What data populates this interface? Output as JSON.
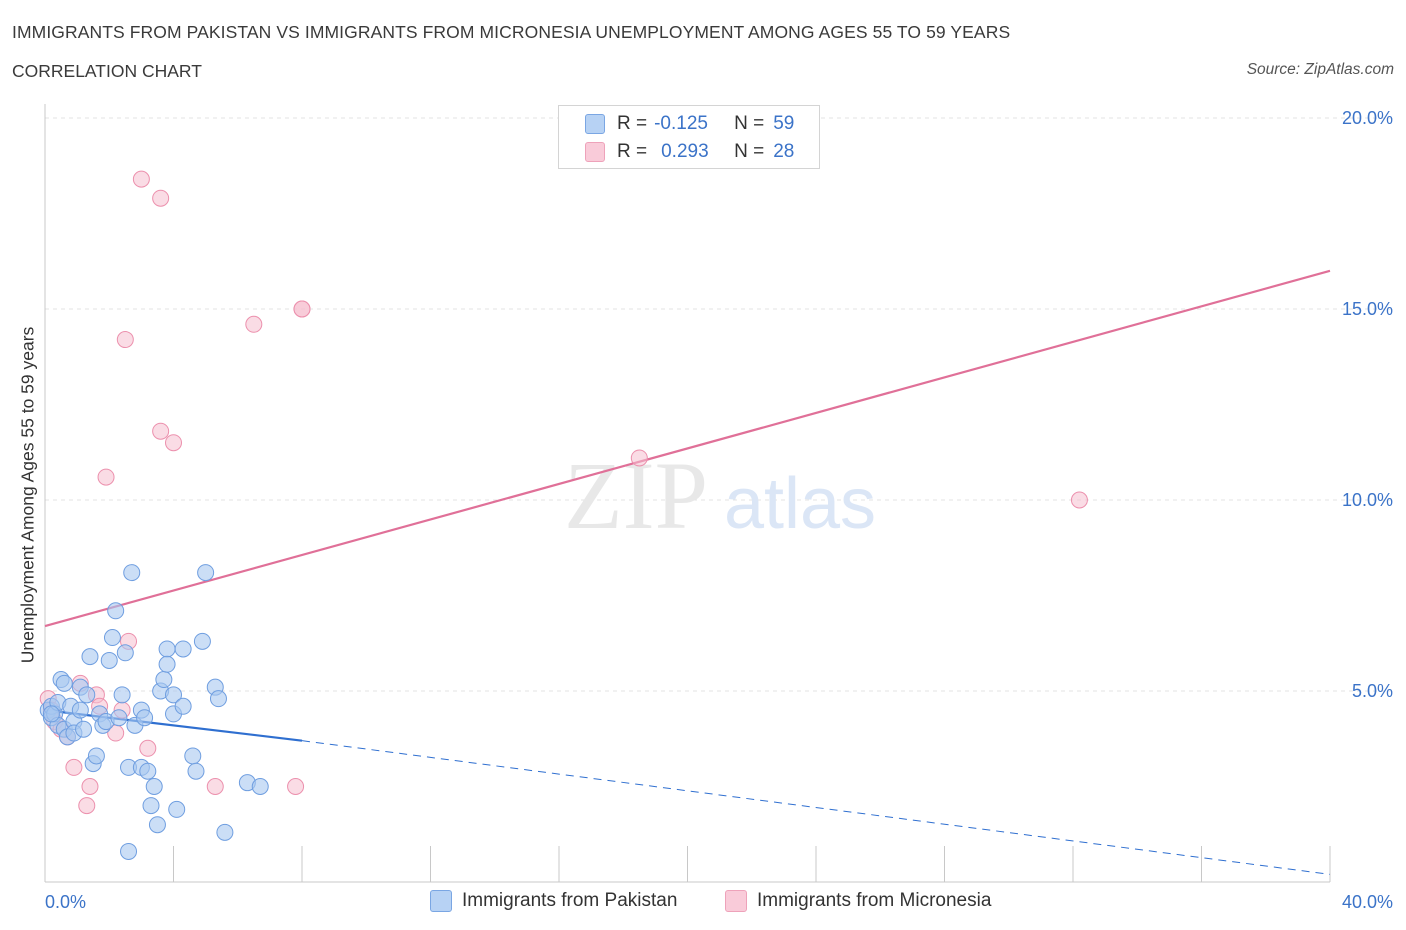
{
  "header": {
    "title": "IMMIGRANTS FROM PAKISTAN VS IMMIGRANTS FROM MICRONESIA UNEMPLOYMENT AMONG AGES 55 TO 59 YEARS",
    "subtitle": "CORRELATION CHART",
    "source": "Source: ZipAtlas.com"
  },
  "legend": {
    "rows": [
      {
        "r_label": "R =",
        "r_value": "-0.125",
        "n_label": "N =",
        "n_value": "59"
      },
      {
        "r_label": "R =",
        "r_value": "0.293",
        "n_label": "N =",
        "n_value": "28"
      }
    ]
  },
  "bottom_legend": {
    "pakistan": "Immigrants from Pakistan",
    "micronesia": "Immigrants from Micronesia"
  },
  "watermark": {
    "zip": "ZIP",
    "atlas": "atlas"
  },
  "colors": {
    "pakistan_fill": "#a9c8f0",
    "pakistan_stroke": "#6f9ee0",
    "pakistan_line": "#2f6fd0",
    "micronesia_fill": "#f6bfd0",
    "micronesia_stroke": "#ec90ad",
    "micronesia_line": "#e07098",
    "tick_label": "#3b73c8",
    "grid": "#e3e3e3"
  },
  "chart_data": {
    "type": "scatter",
    "title": "IMMIGRANTS FROM PAKISTAN VS IMMIGRANTS FROM MICRONESIA UNEMPLOYMENT AMONG AGES 55 TO 59 YEARS",
    "xlabel": "",
    "ylabel": "Unemployment Among Ages 55 to 59 years",
    "xlim": [
      0,
      40
    ],
    "ylim": [
      0,
      20
    ],
    "x_tick_labels": [
      "0.0%",
      "40.0%"
    ],
    "y_ticks": [
      5,
      10,
      15,
      20
    ],
    "y_tick_labels": [
      "5.0%",
      "10.0%",
      "15.0%",
      "20.0%"
    ],
    "grid": true,
    "legend_position": "top-center",
    "series": [
      {
        "name": "Immigrants from Pakistan",
        "R": -0.125,
        "N": 59,
        "trend": {
          "x": [
            0,
            8
          ],
          "y": [
            4.5,
            3.7
          ],
          "dashed_extension_to": [
            40,
            0.2
          ]
        },
        "points": [
          [
            0.1,
            4.5
          ],
          [
            0.2,
            4.3
          ],
          [
            0.2,
            4.6
          ],
          [
            0.3,
            4.4
          ],
          [
            0.4,
            4.7
          ],
          [
            0.4,
            4.1
          ],
          [
            0.5,
            5.3
          ],
          [
            0.6,
            4.0
          ],
          [
            0.6,
            5.2
          ],
          [
            0.7,
            3.8
          ],
          [
            0.8,
            4.6
          ],
          [
            0.9,
            4.2
          ],
          [
            0.9,
            3.9
          ],
          [
            1.1,
            5.1
          ],
          [
            1.1,
            4.5
          ],
          [
            1.2,
            4.0
          ],
          [
            1.3,
            4.9
          ],
          [
            1.4,
            5.9
          ],
          [
            1.5,
            3.1
          ],
          [
            1.6,
            3.3
          ],
          [
            1.7,
            4.4
          ],
          [
            1.8,
            4.1
          ],
          [
            1.9,
            4.2
          ],
          [
            2.0,
            5.8
          ],
          [
            2.1,
            6.4
          ],
          [
            2.2,
            7.1
          ],
          [
            2.3,
            4.3
          ],
          [
            2.4,
            4.9
          ],
          [
            2.5,
            6.0
          ],
          [
            2.6,
            3.0
          ],
          [
            2.7,
            8.1
          ],
          [
            2.8,
            4.1
          ],
          [
            3.0,
            3.0
          ],
          [
            3.0,
            4.5
          ],
          [
            3.1,
            4.3
          ],
          [
            3.2,
            2.9
          ],
          [
            3.3,
            2.0
          ],
          [
            3.4,
            2.5
          ],
          [
            3.5,
            1.5
          ],
          [
            3.6,
            5.0
          ],
          [
            3.7,
            5.3
          ],
          [
            3.8,
            6.1
          ],
          [
            3.8,
            5.7
          ],
          [
            4.0,
            4.4
          ],
          [
            4.0,
            4.9
          ],
          [
            4.1,
            1.9
          ],
          [
            4.3,
            4.6
          ],
          [
            4.3,
            6.1
          ],
          [
            4.6,
            3.3
          ],
          [
            4.7,
            2.9
          ],
          [
            4.9,
            6.3
          ],
          [
            5.0,
            8.1
          ],
          [
            5.3,
            5.1
          ],
          [
            5.4,
            4.8
          ],
          [
            5.6,
            1.3
          ],
          [
            6.3,
            2.6
          ],
          [
            6.7,
            2.5
          ],
          [
            2.6,
            0.8
          ],
          [
            0.2,
            4.4
          ]
        ]
      },
      {
        "name": "Immigrants from Micronesia",
        "R": 0.293,
        "N": 28,
        "trend": {
          "x": [
            0,
            40
          ],
          "y": [
            6.7,
            16.0
          ]
        },
        "points": [
          [
            0.1,
            4.8
          ],
          [
            0.2,
            4.5
          ],
          [
            0.3,
            4.2
          ],
          [
            0.5,
            4.0
          ],
          [
            0.7,
            3.8
          ],
          [
            0.9,
            3.0
          ],
          [
            1.1,
            5.2
          ],
          [
            1.3,
            2.0
          ],
          [
            1.4,
            2.5
          ],
          [
            1.6,
            4.9
          ],
          [
            1.7,
            4.6
          ],
          [
            1.9,
            10.6
          ],
          [
            2.2,
            3.9
          ],
          [
            2.4,
            4.5
          ],
          [
            2.5,
            14.2
          ],
          [
            2.6,
            6.3
          ],
          [
            3.0,
            18.4
          ],
          [
            3.2,
            3.5
          ],
          [
            3.6,
            17.9
          ],
          [
            3.6,
            11.8
          ],
          [
            4.0,
            11.5
          ],
          [
            5.3,
            2.5
          ],
          [
            6.5,
            14.6
          ],
          [
            7.8,
            2.5
          ],
          [
            8.0,
            15.0
          ],
          [
            8.0,
            15.0
          ],
          [
            18.5,
            11.1
          ],
          [
            32.2,
            10.0
          ]
        ]
      }
    ]
  }
}
